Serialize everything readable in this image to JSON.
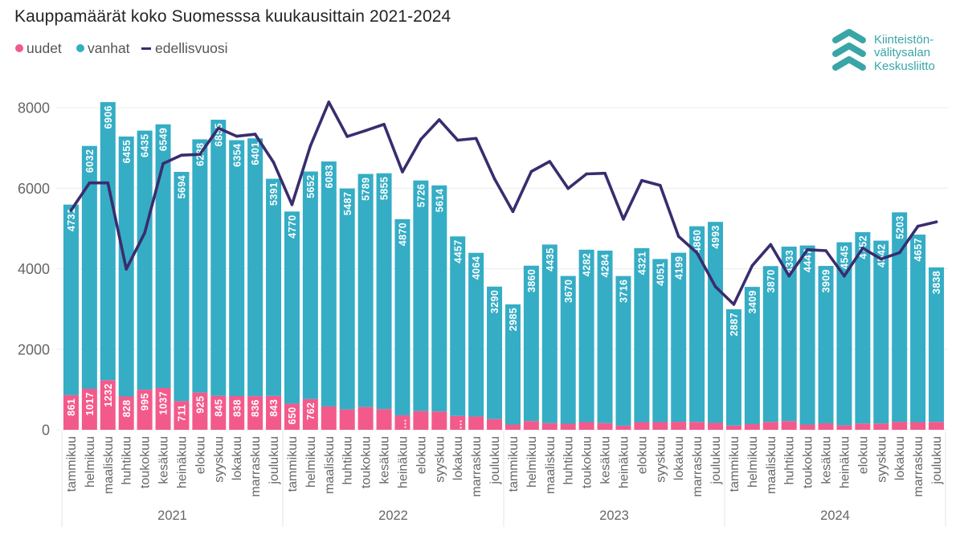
{
  "header": {
    "title": "Kauppamäärät koko Suomesssa kuukausittain 2021-2024"
  },
  "logo": {
    "icon": "chevrons-up-icon",
    "lines": [
      "Kiinteistön-",
      "välitysalan",
      "Keskusliitto"
    ],
    "color": "#3AA5A7"
  },
  "chart_data": {
    "type": "bar",
    "stacked": true,
    "title": "Kauppamäärät koko Suomesssa kuukausittain 2021-2024",
    "xlabel": "",
    "ylabel": "",
    "ylim": [
      0,
      8300
    ],
    "yticks": [
      0,
      2000,
      4000,
      6000,
      8000
    ],
    "ytick_labels": [
      "0",
      "2000",
      "4000",
      "6000",
      "8000"
    ],
    "grid": true,
    "legend_position": "top-left",
    "legend": [
      {
        "label": "uudet",
        "shape": "dot",
        "color": "#F35A8C"
      },
      {
        "label": "vanhat",
        "shape": "dot",
        "color": "#35ADC5"
      },
      {
        "label": "edellisvuosi",
        "shape": "line",
        "color": "#3A2C6E"
      }
    ],
    "x_groups": [
      "2021",
      "2022",
      "2023",
      "2024"
    ],
    "months": [
      "tammikuu",
      "helmikuu",
      "maaliskuu",
      "huhtikuu",
      "toukokuu",
      "kesäkuu",
      "heinäkuu",
      "elokuu",
      "syyskuu",
      "lokakuu",
      "marraskuu",
      "joulukuu"
    ],
    "categories": [
      "tammikuu 2021",
      "helmikuu 2021",
      "maaliskuu 2021",
      "huhtikuu 2021",
      "toukokuu 2021",
      "kesäkuu 2021",
      "heinäkuu 2021",
      "elokuu 2021",
      "syyskuu 2021",
      "lokakuu 2021",
      "marraskuu 2021",
      "joulukuu 2021",
      "tammikuu 2022",
      "helmikuu 2022",
      "maaliskuu 2022",
      "huhtikuu 2022",
      "toukokuu 2022",
      "kesäkuu 2022",
      "heinäkuu 2022",
      "elokuu 2022",
      "syyskuu 2022",
      "lokakuu 2022",
      "marraskuu 2022",
      "joulukuu 2022",
      "tammikuu 2023",
      "helmikuu 2023",
      "maaliskuu 2023",
      "huhtikuu 2023",
      "toukokuu 2023",
      "kesäkuu 2023",
      "heinäkuu 2023",
      "elokuu 2023",
      "syyskuu 2023",
      "lokakuu 2023",
      "marraskuu 2023",
      "joulukuu 2023",
      "tammikuu 2024",
      "helmikuu 2024",
      "maaliskuu 2024",
      "huhtikuu 2024",
      "toukokuu 2024",
      "kesäkuu 2024",
      "heinäkuu 2024",
      "elokuu 2024",
      "syyskuu 2024",
      "lokakuu 2024",
      "marraskuu 2024",
      "joulukuu 2024"
    ],
    "series": [
      {
        "name": "uudet",
        "type": "bar",
        "color": "#F35A8C",
        "values": [
          861,
          1017,
          1232,
          828,
          995,
          1037,
          711,
          925,
          845,
          838,
          836,
          843,
          650,
          762,
          580,
          505,
          565,
          515,
          360,
          465,
          455,
          345,
          330,
          265,
          130,
          215,
          165,
          150,
          190,
          165,
          102,
          190,
          190,
          198,
          194,
          170,
          105,
          140,
          195,
          215,
          130,
          160,
          112,
          155,
          155,
          197,
          190,
          195
        ],
        "labels": [
          "861",
          "1017",
          "1232",
          "828",
          "995",
          "1037",
          "711",
          "925",
          "845",
          "838",
          "836",
          "843",
          "650",
          "762",
          null,
          null,
          null,
          null,
          "…",
          null,
          null,
          "…",
          null,
          null,
          null,
          null,
          null,
          null,
          null,
          null,
          null,
          null,
          null,
          null,
          null,
          null,
          null,
          null,
          null,
          null,
          null,
          null,
          null,
          null,
          null,
          null,
          null,
          null
        ]
      },
      {
        "name": "vanhat",
        "type": "bar",
        "color": "#35ADC5",
        "values": [
          4731,
          6032,
          6906,
          6455,
          6435,
          6549,
          5694,
          6288,
          6855,
          6354,
          6401,
          5391,
          4770,
          5652,
          6083,
          5487,
          5789,
          5855,
          4870,
          5726,
          5614,
          4457,
          4064,
          3290,
          2985,
          3860,
          4435,
          3670,
          4282,
          4284,
          3716,
          4321,
          4051,
          4199,
          4860,
          4993,
          2887,
          3409,
          3870,
          4333,
          4447,
          3909,
          4545,
          4752,
          4542,
          5203,
          4657,
          3838
        ],
        "labels": [
          "4731",
          "6032",
          "6906",
          "6455",
          "6435",
          "6549",
          "5694",
          "6288",
          "6855",
          "6354",
          "6401",
          "5391",
          "4770",
          "5652",
          "6083",
          "5487",
          "5789",
          "5855",
          "4870",
          "5726",
          "5614",
          "4457",
          "4064",
          "3290",
          "2985",
          "3860",
          "4435",
          "3670",
          "4282",
          "4284",
          "3716",
          "4321",
          "4051",
          "4199",
          "4860",
          "4993",
          "2887",
          "3409",
          "3870",
          "4333",
          "4447",
          "3909",
          "4545",
          "4752",
          "4542",
          "5203",
          "4657",
          "3838"
        ]
      },
      {
        "name": "edellisvuosi",
        "type": "line",
        "color": "#3A2C6E",
        "values": [
          5450,
          6130,
          6130,
          3990,
          4890,
          6610,
          6820,
          6840,
          7490,
          7290,
          7340,
          6640,
          5592,
          7049,
          8138,
          7283,
          7430,
          7586,
          6405,
          7213,
          7700,
          7192,
          7237,
          6234,
          5420,
          6414,
          6663,
          5992,
          6354,
          6370,
          5230,
          6191,
          6069,
          4802,
          4394,
          3555,
          3115,
          4075,
          4600,
          3820,
          4472,
          4449,
          3818,
          4511,
          4241,
          4397,
          5054,
          5163
        ]
      }
    ]
  }
}
